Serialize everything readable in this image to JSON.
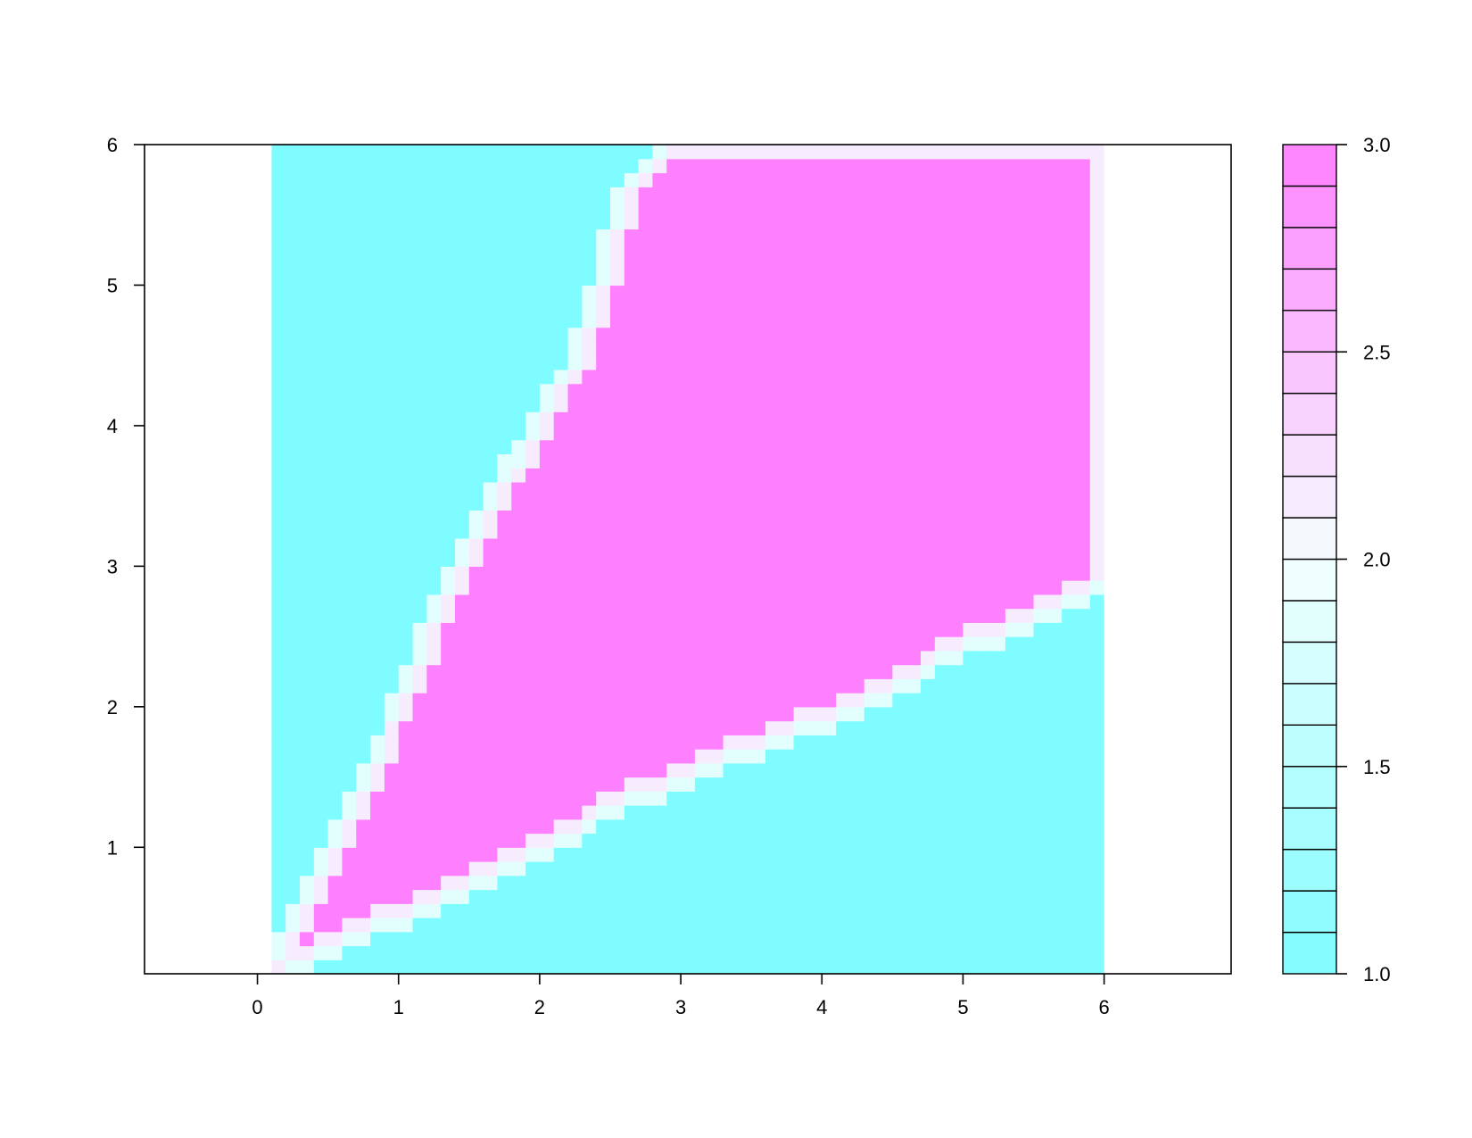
{
  "chart_data": {
    "type": "heatmap",
    "title": "",
    "xlabel": "",
    "ylabel": "",
    "xlim": [
      -0.8,
      6.9
    ],
    "ylim": [
      0.1,
      6.0
    ],
    "data_extent": {
      "x": [
        0.1,
        6.0
      ],
      "y": [
        0.1,
        6.0
      ]
    },
    "grid": false,
    "x_ticks": [
      0,
      1,
      2,
      3,
      4,
      5,
      6
    ],
    "x_tick_labels": [
      "0",
      "1",
      "2",
      "3",
      "4",
      "5",
      "6"
    ],
    "y_ticks": [
      1,
      2,
      3,
      4,
      5,
      6
    ],
    "y_tick_labels": [
      "1",
      "2",
      "3",
      "4",
      "5",
      "6"
    ],
    "colorbar": {
      "range": [
        1.0,
        3.0
      ],
      "levels": 20,
      "ticks": [
        1.0,
        1.5,
        2.0,
        2.5,
        3.0
      ],
      "tick_labels": [
        "1.0",
        "1.5",
        "2.0",
        "2.5",
        "3.0"
      ],
      "low_color": "#7ffcff",
      "mid_color": "#f4fffe",
      "high_color": "#ff80ff",
      "placement": "right"
    },
    "regions": [
      {
        "value": 3.0,
        "color": "#ff80ff",
        "description_points": [
          [
            0.1,
            0.1
          ],
          [
            0.6,
            0.35
          ],
          [
            1.2,
            0.6
          ],
          [
            2.0,
            1.0
          ],
          [
            2.6,
            1.35
          ],
          [
            3.1,
            1.55
          ],
          [
            3.7,
            1.8
          ],
          [
            4.4,
            2.1
          ],
          [
            5.0,
            2.45
          ],
          [
            5.5,
            2.65
          ],
          [
            5.9,
            2.85
          ],
          [
            6.0,
            2.9
          ],
          [
            6.0,
            6.0
          ],
          [
            3.0,
            6.0
          ],
          [
            2.6,
            5.7
          ],
          [
            2.5,
            5.1
          ],
          [
            2.3,
            4.5
          ],
          [
            2.0,
            4.0
          ],
          [
            1.7,
            3.5
          ],
          [
            1.4,
            2.9
          ],
          [
            1.1,
            2.2
          ],
          [
            0.8,
            1.5
          ],
          [
            0.55,
            1.0
          ],
          [
            0.35,
            0.6
          ]
        ]
      },
      {
        "value": 1.0,
        "color": "#7ffcff",
        "description": "upper-left and lower-right areas"
      }
    ]
  }
}
